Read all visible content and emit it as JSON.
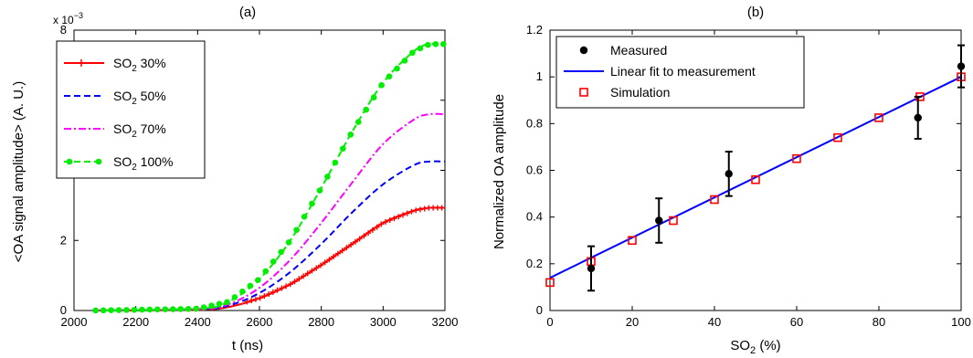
{
  "chart_data": [
    {
      "type": "line",
      "panel_label": "(a)",
      "xlabel": "t (ns)",
      "ylabel": "<OA signal amplitude> (A. U.)",
      "exponent_label": "x 10",
      "exponent_power": "−3",
      "xlim": [
        2000,
        3200
      ],
      "ylim": [
        0,
        8
      ],
      "xticks": [
        2000,
        2200,
        2400,
        2600,
        2800,
        3000,
        3200
      ],
      "yticks": [
        0,
        2,
        4,
        6,
        8
      ],
      "legend_position": "top-left",
      "series": [
        {
          "name": "SO",
          "name_sub": "2",
          "name_suffix": " 30%",
          "color": "#ff0000",
          "dash": "solid",
          "marker": "plus",
          "x": [
            2060,
            2400,
            2500,
            2600,
            2700,
            2800,
            2900,
            3000,
            3100,
            3150,
            3200
          ],
          "y": [
            0,
            0.02,
            0.1,
            0.35,
            0.75,
            1.3,
            1.9,
            2.5,
            2.85,
            2.93,
            2.93
          ]
        },
        {
          "name": "SO",
          "name_sub": "2",
          "name_suffix": " 50%",
          "color": "#0000ff",
          "dash": "dashed",
          "marker": "none",
          "x": [
            2060,
            2400,
            2500,
            2600,
            2700,
            2800,
            2900,
            3000,
            3100,
            3150,
            3200
          ],
          "y": [
            0,
            0.03,
            0.14,
            0.5,
            1.1,
            1.9,
            2.8,
            3.6,
            4.15,
            4.25,
            4.25
          ]
        },
        {
          "name": "SO",
          "name_sub": "2",
          "name_suffix": " 70%",
          "color": "#ff00ff",
          "dash": "dashdot",
          "marker": "none",
          "x": [
            2060,
            2400,
            2500,
            2600,
            2700,
            2800,
            2900,
            3000,
            3100,
            3150,
            3200
          ],
          "y": [
            0,
            0.04,
            0.18,
            0.65,
            1.45,
            2.5,
            3.65,
            4.75,
            5.45,
            5.6,
            5.6
          ]
        },
        {
          "name": "SO",
          "name_sub": "2",
          "name_suffix": " 100%",
          "color": "#00ee00",
          "dash": "dashed",
          "marker": "circle",
          "x": [
            2060,
            2400,
            2500,
            2600,
            2700,
            2800,
            2900,
            3000,
            3100,
            3150,
            3200
          ],
          "y": [
            0,
            0.05,
            0.25,
            0.9,
            2.0,
            3.5,
            5.1,
            6.5,
            7.4,
            7.6,
            7.6
          ]
        }
      ]
    },
    {
      "type": "scatter",
      "panel_label": "(b)",
      "xlabel": "SO",
      "xlabel_sub": "2",
      "xlabel_suffix": " (%)",
      "ylabel": "Normalized OA amplitude",
      "xlim": [
        0,
        100
      ],
      "ylim": [
        0,
        1.2
      ],
      "xticks": [
        0,
        20,
        40,
        60,
        80,
        100
      ],
      "yticks": [
        0,
        0.2,
        0.4,
        0.6,
        0.8,
        1,
        1.2
      ],
      "legend_position": "top-left",
      "measured": {
        "name": "Measured",
        "color": "#000000",
        "x": [
          10,
          26.5,
          43.5,
          89.5,
          100
        ],
        "y": [
          0.18,
          0.385,
          0.585,
          0.825,
          1.045
        ],
        "err": [
          0.095,
          0.095,
          0.095,
          0.09,
          0.09
        ]
      },
      "fit": {
        "name": "Linear fit to measurement",
        "color": "#0000ff",
        "x": [
          0,
          100
        ],
        "y": [
          0.14,
          1.0
        ]
      },
      "simulation": {
        "name": "Simulation",
        "color": "#ff0000",
        "x": [
          0,
          10,
          20,
          30,
          40,
          50,
          60,
          70,
          80,
          90,
          100
        ],
        "y": [
          0.12,
          0.21,
          0.3,
          0.385,
          0.475,
          0.56,
          0.65,
          0.74,
          0.825,
          0.915,
          1.0
        ]
      }
    }
  ]
}
